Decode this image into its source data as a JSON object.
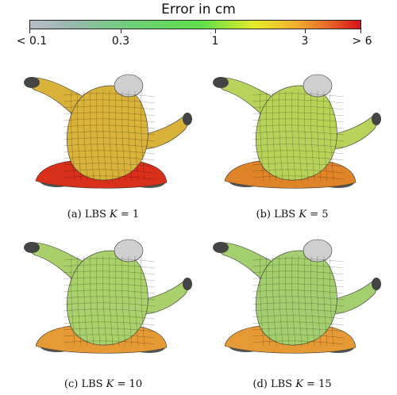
{
  "colorbar": {
    "title": "Error in cm",
    "ticks": [
      "< 0.1",
      "0.3",
      "1",
      "3",
      "> 6"
    ],
    "colors": [
      "#b8bcc8",
      "#6fcf7a",
      "#5fe04a",
      "#e8ea2a",
      "#f1b230",
      "#d8101a"
    ]
  },
  "panels": [
    {
      "prefix": "(a) LBS ",
      "var": "K",
      "eq": " = 1",
      "body_color": "#d9b23a",
      "base_color": "#d8301a"
    },
    {
      "prefix": "(b) LBS ",
      "var": "K",
      "eq": " = 5",
      "body_color": "#b7d35a",
      "base_color": "#e0842a"
    },
    {
      "prefix": "(c) LBS ",
      "var": "K",
      "eq": " = 10",
      "body_color": "#a9d06a",
      "base_color": "#e59a35"
    },
    {
      "prefix": "(d) LBS ",
      "var": "K",
      "eq": " = 15",
      "body_color": "#a4cf6e",
      "base_color": "#e59a35"
    }
  ]
}
